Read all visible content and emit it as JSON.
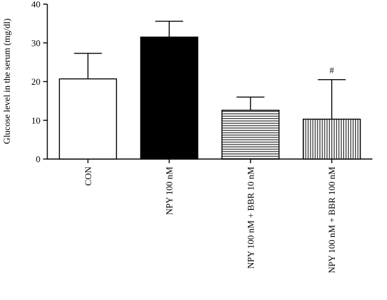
{
  "chart_data": {
    "type": "bar",
    "title": "",
    "xlabel": "",
    "ylabel": "Glucose level in the serum (mg/dl)",
    "ylim": [
      0,
      40
    ],
    "yticks": [
      0,
      10,
      20,
      30,
      40
    ],
    "grid": false,
    "legend": "none",
    "categories": [
      "CON",
      "NPY 100 nM",
      "NPY 100 nM + BBR 10 nM",
      "NPY 100 nM + BBR 100 nM"
    ],
    "values": [
      20.7,
      31.5,
      12.6,
      10.3
    ],
    "errors": [
      6.6,
      4.1,
      3.4,
      10.2
    ],
    "fills": [
      "white",
      "solid",
      "horizontal-stripes",
      "vertical-stripes"
    ],
    "annotations": [
      "",
      "",
      "",
      "#"
    ]
  }
}
